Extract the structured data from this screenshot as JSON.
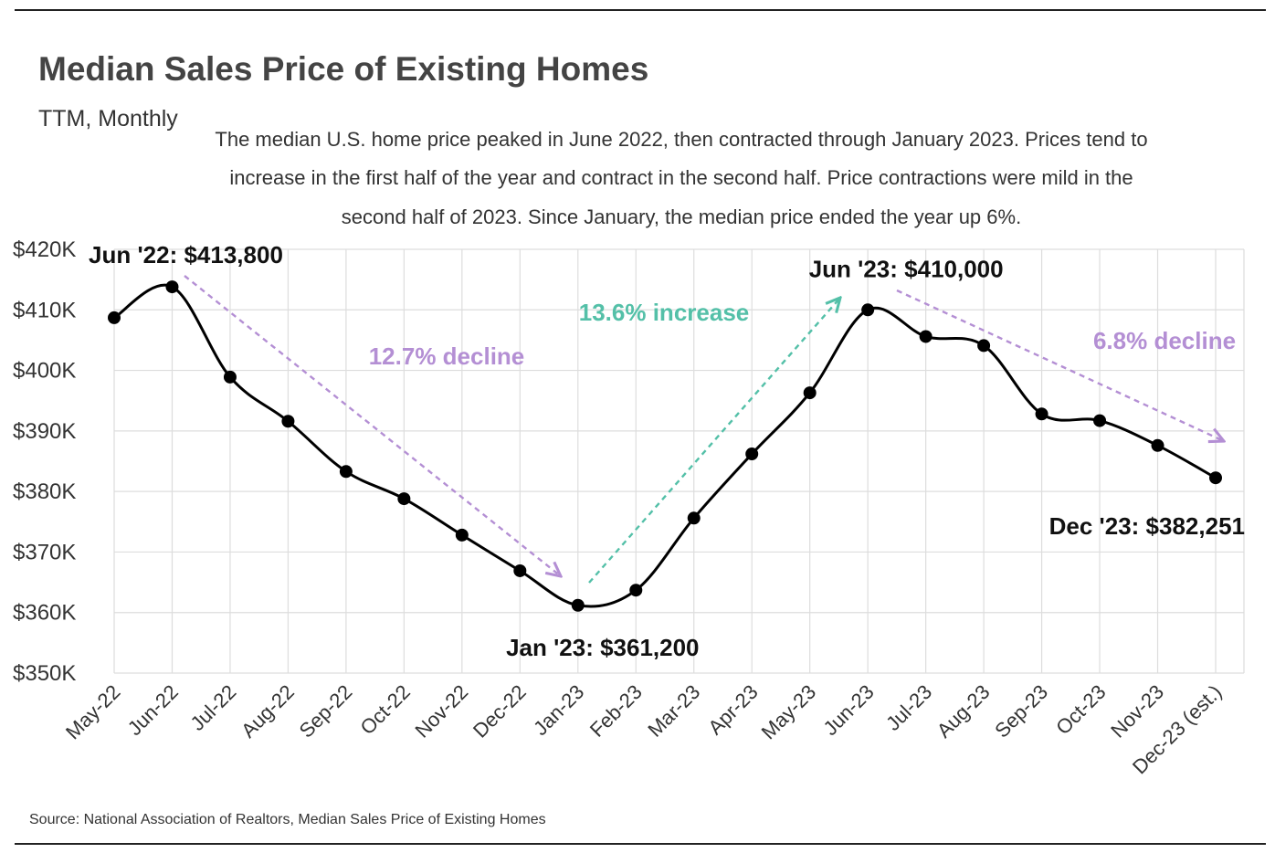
{
  "chart_data": {
    "type": "line",
    "title": "Median Sales Price of Existing Homes",
    "subtitle": "TTM, Monthly",
    "description": [
      "The median U.S. home price peaked in June 2022, then contracted through January 2023. Prices tend to",
      "increase in the first half of the year and contract in the second half. Price contractions were mild in the",
      "second half of 2023. Since January, the median price ended the year up 6%."
    ],
    "categories": [
      "May-22",
      "Jun-22",
      "Jul-22",
      "Aug-22",
      "Sep-22",
      "Oct-22",
      "Nov-22",
      "Dec-22",
      "Jan-23",
      "Feb-23",
      "Mar-23",
      "Apr-23",
      "May-23",
      "Jun-23",
      "Jul-23",
      "Aug-23",
      "Sep-23",
      "Oct-23",
      "Nov-23",
      "Dec-23 (est.)"
    ],
    "values": [
      408700,
      413800,
      398900,
      391600,
      383300,
      378800,
      372800,
      366900,
      361200,
      363700,
      375600,
      386200,
      396300,
      410000,
      405600,
      404100,
      392800,
      391700,
      387600,
      382251
    ],
    "ylim": [
      350000,
      420000
    ],
    "yticks": [
      350000,
      360000,
      370000,
      380000,
      390000,
      400000,
      410000,
      420000
    ],
    "ytick_labels": [
      "$350K",
      "$360K",
      "$370K",
      "$380K",
      "$390K",
      "$400K",
      "$410K",
      "$420K"
    ],
    "grid": true,
    "xlabel": "",
    "ylabel": "",
    "point_labels": [
      {
        "index": 1,
        "text": "Jun '22: $413,800"
      },
      {
        "index": 8,
        "text": "Jan '23: $361,200"
      },
      {
        "index": 13,
        "text": "Jun '23: $410,000"
      },
      {
        "index": 19,
        "text": "Dec '23: $382,251"
      }
    ],
    "trend_annotations": [
      {
        "from": 1,
        "to": 8,
        "text": "12.7% decline",
        "color": "#b48fd4"
      },
      {
        "from": 8,
        "to": 13,
        "text": "13.6% increase",
        "color": "#54c0a8"
      },
      {
        "from": 13,
        "to": 19,
        "text": "6.8% decline",
        "color": "#b48fd4"
      }
    ],
    "source": "Source:  National Association of Realtors, Median Sales Price of Existing Homes"
  },
  "colors": {
    "line": "#000000",
    "grid": "#dddddd",
    "title": "#444444",
    "text": "#333333",
    "decline": "#b48fd4",
    "increase": "#54c0a8"
  }
}
